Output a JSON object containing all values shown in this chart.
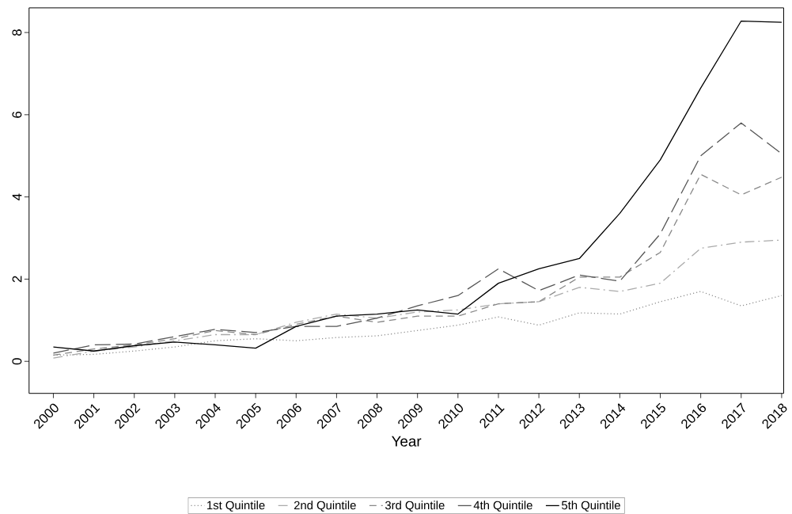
{
  "chart_data": {
    "type": "line",
    "xlabel": "Year",
    "x": [
      2000,
      2001,
      2002,
      2003,
      2004,
      2005,
      2006,
      2007,
      2008,
      2009,
      2010,
      2011,
      2012,
      2013,
      2014,
      2015,
      2016,
      2017,
      2018
    ],
    "xlim": [
      1999.4,
      2018.05
    ],
    "xticks": [
      2000,
      2001,
      2002,
      2003,
      2004,
      2005,
      2006,
      2007,
      2008,
      2009,
      2010,
      2011,
      2012,
      2013,
      2014,
      2015,
      2016,
      2017,
      2018
    ],
    "ylim": [
      -0.78,
      8.6
    ],
    "yticks": [
      0,
      2,
      4,
      6,
      8
    ],
    "legend": "bottom",
    "grid": false,
    "series": [
      {
        "name": "1st Quintile",
        "color": "#8c8c8c",
        "line_style": "dotted",
        "values": [
          0.15,
          0.17,
          0.25,
          0.35,
          0.5,
          0.55,
          0.5,
          0.58,
          0.62,
          0.75,
          0.88,
          1.08,
          0.88,
          1.18,
          1.15,
          1.45,
          1.7,
          1.35,
          1.6
        ]
      },
      {
        "name": "2nd Quintile",
        "color": "#aaaaaa",
        "line_style": "dash-dot",
        "values": [
          0.08,
          0.25,
          0.35,
          0.5,
          0.65,
          0.65,
          0.95,
          1.15,
          1.05,
          1.2,
          1.25,
          1.4,
          1.45,
          1.8,
          1.7,
          1.9,
          2.75,
          2.9,
          2.95
        ]
      },
      {
        "name": "3rd Quintile",
        "color": "#888888",
        "line_style": "dashed",
        "values": [
          0.15,
          0.3,
          0.4,
          0.55,
          0.75,
          0.65,
          0.9,
          1.1,
          0.95,
          1.1,
          1.1,
          1.4,
          1.45,
          2.05,
          2.05,
          2.65,
          4.55,
          4.05,
          4.48
        ]
      },
      {
        "name": "4th Quintile",
        "color": "#555555",
        "line_style": "long-dash",
        "values": [
          0.2,
          0.4,
          0.42,
          0.6,
          0.78,
          0.7,
          0.85,
          0.85,
          1.05,
          1.35,
          1.6,
          2.25,
          1.72,
          2.1,
          1.95,
          3.1,
          5.0,
          5.8,
          5.05
        ]
      },
      {
        "name": "5th Quintile",
        "color": "#000000",
        "line_style": "solid",
        "values": [
          0.35,
          0.25,
          0.38,
          0.47,
          0.4,
          0.32,
          0.85,
          1.1,
          1.15,
          1.25,
          1.15,
          1.9,
          2.25,
          2.5,
          3.6,
          4.9,
          6.65,
          8.28,
          8.25
        ]
      }
    ]
  }
}
